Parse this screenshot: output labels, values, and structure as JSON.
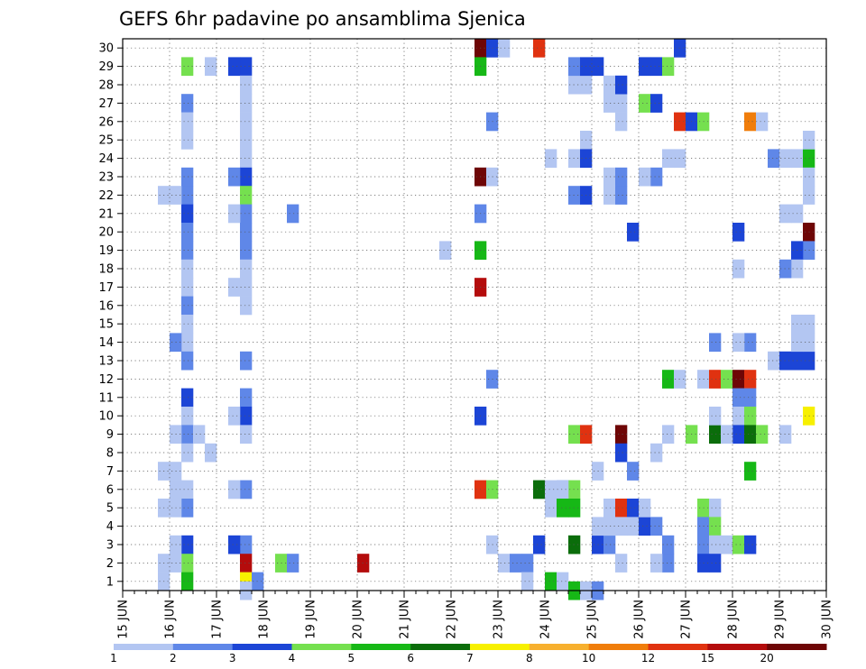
{
  "chart_data": {
    "type": "heatmap",
    "title": "GEFS 6hr padavine po ansamblima Sjenica",
    "x_tick_labels": [
      "15 JUN",
      "16 JUN",
      "17 JUN",
      "18 JUN",
      "19 JUN",
      "20 JUN",
      "21 JUN",
      "22 JUN",
      "23 JUN",
      "24 JUN",
      "25 JUN",
      "26 JUN",
      "27 JUN",
      "28 JUN",
      "29 JUN",
      "30 JUN"
    ],
    "y_tick_labels": [
      "1",
      "2",
      "3",
      "4",
      "5",
      "6",
      "7",
      "8",
      "9",
      "10",
      "11",
      "12",
      "13",
      "14",
      "15",
      "16",
      "17",
      "18",
      "19",
      "20",
      "21",
      "22",
      "23",
      "24",
      "25",
      "26",
      "27",
      "28",
      "29",
      "30"
    ],
    "x_unit": "6-hour steps from 15 JUN 00Z",
    "xlim": [
      0,
      60
    ],
    "ylim": [
      0.5,
      30.5
    ],
    "grid": true,
    "colorbar": {
      "labels": [
        "1",
        "2",
        "3",
        "4",
        "5",
        "6",
        "7",
        "8",
        "10",
        "12",
        "15",
        "20"
      ],
      "colors": [
        "#b3c6f2",
        "#5f87e8",
        "#1c45d6",
        "#75e04f",
        "#16b816",
        "#0b6d0b",
        "#f7f000",
        "#f7b02e",
        "#f07d0b",
        "#e03210",
        "#b40c0c",
        "#6e0606"
      ]
    },
    "cells": [
      [
        5,
        29,
        4
      ],
      [
        5,
        27,
        2
      ],
      [
        5,
        26,
        1
      ],
      [
        5,
        25,
        1
      ],
      [
        5,
        23,
        2
      ],
      [
        5,
        22,
        2
      ],
      [
        5,
        21,
        3
      ],
      [
        5,
        20,
        2
      ],
      [
        5,
        19,
        2
      ],
      [
        5,
        18,
        1
      ],
      [
        5,
        17,
        1
      ],
      [
        5,
        16,
        2
      ],
      [
        5,
        15,
        1
      ],
      [
        5,
        14,
        1
      ],
      [
        5,
        13,
        2
      ],
      [
        5,
        11,
        3
      ],
      [
        5,
        10,
        1
      ],
      [
        5,
        9,
        2
      ],
      [
        5,
        8,
        1
      ],
      [
        5,
        6,
        1
      ],
      [
        5,
        5,
        2
      ],
      [
        5,
        3,
        3
      ],
      [
        5,
        2,
        4
      ],
      [
        5,
        1,
        5
      ],
      [
        4,
        22,
        1
      ],
      [
        4,
        14,
        2
      ],
      [
        4,
        9,
        1
      ],
      [
        4,
        7,
        1
      ],
      [
        4,
        6,
        1
      ],
      [
        4,
        5,
        1
      ],
      [
        4,
        3,
        1
      ],
      [
        4,
        2,
        1
      ],
      [
        3,
        22,
        1
      ],
      [
        3,
        7,
        1
      ],
      [
        3,
        5,
        1
      ],
      [
        3,
        2,
        1
      ],
      [
        3,
        1,
        1
      ],
      [
        6,
        9,
        1
      ],
      [
        7,
        29,
        1
      ],
      [
        7,
        8,
        1
      ],
      [
        10,
        29,
        3
      ],
      [
        9,
        29,
        3
      ],
      [
        10,
        28,
        1
      ],
      [
        10,
        27,
        1
      ],
      [
        10,
        26,
        1
      ],
      [
        10,
        25,
        1
      ],
      [
        10,
        24,
        1
      ],
      [
        10,
        23,
        3
      ],
      [
        9,
        23,
        2
      ],
      [
        10,
        22,
        4
      ],
      [
        10,
        21,
        2
      ],
      [
        9,
        21,
        1
      ],
      [
        10,
        20,
        2
      ],
      [
        10,
        19,
        2
      ],
      [
        10,
        18,
        1
      ],
      [
        10,
        17,
        1
      ],
      [
        9,
        17,
        1
      ],
      [
        10,
        16,
        1
      ],
      [
        10,
        13,
        2
      ],
      [
        10,
        11,
        2
      ],
      [
        10,
        10,
        3
      ],
      [
        9,
        10,
        1
      ],
      [
        10,
        9,
        1
      ],
      [
        10,
        6,
        2
      ],
      [
        9,
        6,
        1
      ],
      [
        10,
        3,
        2
      ],
      [
        9,
        3,
        3
      ],
      [
        10,
        2,
        11
      ],
      [
        10,
        1,
        7
      ],
      [
        11,
        1,
        2
      ],
      [
        10,
        0.5,
        1
      ],
      [
        14,
        21,
        2
      ],
      [
        13,
        2,
        4
      ],
      [
        14,
        2,
        2
      ],
      [
        20,
        2,
        11
      ],
      [
        27,
        19,
        1
      ],
      [
        30,
        30,
        12
      ],
      [
        31,
        30,
        3
      ],
      [
        32,
        30,
        1
      ],
      [
        35,
        30,
        10
      ],
      [
        30,
        29,
        5
      ],
      [
        31,
        26,
        2
      ],
      [
        30,
        23,
        12
      ],
      [
        31,
        23,
        1
      ],
      [
        30,
        21,
        2
      ],
      [
        30,
        19,
        5
      ],
      [
        30,
        17,
        11
      ],
      [
        31,
        12,
        2
      ],
      [
        30,
        10,
        3
      ],
      [
        30,
        6,
        10
      ],
      [
        31,
        6,
        4
      ],
      [
        31,
        3,
        1
      ],
      [
        32,
        2,
        1
      ],
      [
        33,
        2,
        2
      ],
      [
        34,
        2,
        2
      ],
      [
        35,
        3,
        3
      ],
      [
        34,
        1,
        1
      ],
      [
        35,
        6,
        6
      ],
      [
        36,
        1,
        5
      ],
      [
        37,
        1,
        1
      ],
      [
        36,
        24,
        1
      ],
      [
        36,
        5,
        1
      ],
      [
        36,
        6,
        1
      ],
      [
        37,
        6,
        2
      ],
      [
        38,
        28,
        1
      ],
      [
        39,
        28,
        1
      ],
      [
        38,
        29,
        2
      ],
      [
        38,
        24,
        1
      ],
      [
        38,
        22,
        2
      ],
      [
        38,
        6,
        4
      ],
      [
        37,
        6,
        1
      ],
      [
        38,
        5,
        5
      ],
      [
        37,
        5,
        5
      ],
      [
        38,
        9,
        4
      ],
      [
        38,
        3,
        6
      ],
      [
        38,
        0.5,
        5
      ],
      [
        39,
        0.5,
        1
      ],
      [
        39,
        29,
        3
      ],
      [
        40,
        29,
        3
      ],
      [
        39,
        25,
        1
      ],
      [
        39,
        24,
        3
      ],
      [
        39,
        22,
        3
      ],
      [
        39,
        9,
        10
      ],
      [
        40,
        3,
        3
      ],
      [
        40,
        0.5,
        2
      ],
      [
        40,
        7,
        1
      ],
      [
        41,
        28,
        1
      ],
      [
        41,
        27,
        1
      ],
      [
        42,
        27,
        1
      ],
      [
        42,
        28,
        3
      ],
      [
        42,
        26,
        1
      ],
      [
        41,
        23,
        1
      ],
      [
        42,
        23,
        2
      ],
      [
        41,
        22,
        1
      ],
      [
        42,
        22,
        2
      ],
      [
        41,
        5,
        1
      ],
      [
        42,
        5,
        10
      ],
      [
        42,
        2,
        1
      ],
      [
        41,
        3,
        2
      ],
      [
        40,
        4,
        1
      ],
      [
        41,
        4,
        1
      ],
      [
        42,
        4,
        1
      ],
      [
        42,
        9,
        12
      ],
      [
        42,
        8,
        3
      ],
      [
        43,
        7,
        2
      ],
      [
        43,
        5,
        3
      ],
      [
        43,
        20,
        3
      ],
      [
        43,
        4,
        1
      ],
      [
        44,
        4,
        3
      ],
      [
        45,
        4,
        2
      ],
      [
        44,
        5,
        1
      ],
      [
        45,
        8,
        1
      ],
      [
        44,
        29,
        3
      ],
      [
        45,
        29,
        3
      ],
      [
        46,
        29,
        4
      ],
      [
        44,
        27,
        4
      ],
      [
        45,
        27,
        3
      ],
      [
        45,
        23,
        2
      ],
      [
        44,
        23,
        1
      ],
      [
        46,
        24,
        1
      ],
      [
        47,
        24,
        1
      ],
      [
        46,
        3,
        2
      ],
      [
        46,
        2,
        2
      ],
      [
        45,
        2,
        1
      ],
      [
        47,
        30,
        3
      ],
      [
        47,
        26,
        10
      ],
      [
        48,
        26,
        3
      ],
      [
        46,
        9,
        1
      ],
      [
        46,
        12,
        5
      ],
      [
        47,
        12,
        1
      ],
      [
        49,
        26,
        4
      ],
      [
        48,
        9,
        4
      ],
      [
        50,
        9,
        6
      ],
      [
        49,
        12,
        1
      ],
      [
        50,
        12,
        10
      ],
      [
        51,
        12,
        4
      ],
      [
        52,
        12,
        12
      ],
      [
        53,
        12,
        10
      ],
      [
        49,
        5,
        4
      ],
      [
        50,
        5,
        1
      ],
      [
        49,
        4,
        2
      ],
      [
        50,
        4,
        4
      ],
      [
        49,
        3,
        2
      ],
      [
        50,
        3,
        1
      ],
      [
        51,
        3,
        1
      ],
      [
        49,
        2,
        3
      ],
      [
        50,
        2,
        3
      ],
      [
        50,
        14,
        2
      ],
      [
        50,
        10,
        1
      ],
      [
        52,
        20,
        3
      ],
      [
        52,
        11,
        2
      ],
      [
        53,
        11,
        2
      ],
      [
        52,
        10,
        1
      ],
      [
        53,
        10,
        4
      ],
      [
        52,
        9,
        3
      ],
      [
        53,
        9,
        6
      ],
      [
        54,
        9,
        4
      ],
      [
        52,
        3,
        4
      ],
      [
        53,
        3,
        3
      ],
      [
        51,
        9,
        1
      ],
      [
        53,
        7,
        5
      ],
      [
        52,
        18,
        1
      ],
      [
        53,
        14,
        2
      ],
      [
        52,
        14,
        1
      ],
      [
        53,
        26,
        9
      ],
      [
        54,
        26,
        1
      ],
      [
        55,
        24,
        2
      ],
      [
        56,
        24,
        1
      ],
      [
        57,
        24,
        1
      ],
      [
        58,
        24,
        5
      ],
      [
        58,
        23,
        1
      ],
      [
        58,
        22,
        1
      ],
      [
        58,
        25,
        1
      ],
      [
        58,
        20,
        12
      ],
      [
        58,
        19,
        2
      ],
      [
        57,
        19,
        3
      ],
      [
        57,
        18,
        1
      ],
      [
        56,
        18,
        2
      ],
      [
        56,
        21,
        1
      ],
      [
        57,
        21,
        1
      ],
      [
        55,
        13,
        1
      ],
      [
        56,
        13,
        3
      ],
      [
        57,
        13,
        3
      ],
      [
        58,
        13,
        3
      ],
      [
        57,
        14,
        1
      ],
      [
        58,
        14,
        1
      ],
      [
        58,
        15,
        1
      ],
      [
        57,
        15,
        1
      ],
      [
        56,
        9,
        1
      ],
      [
        58,
        10,
        7
      ]
    ]
  }
}
